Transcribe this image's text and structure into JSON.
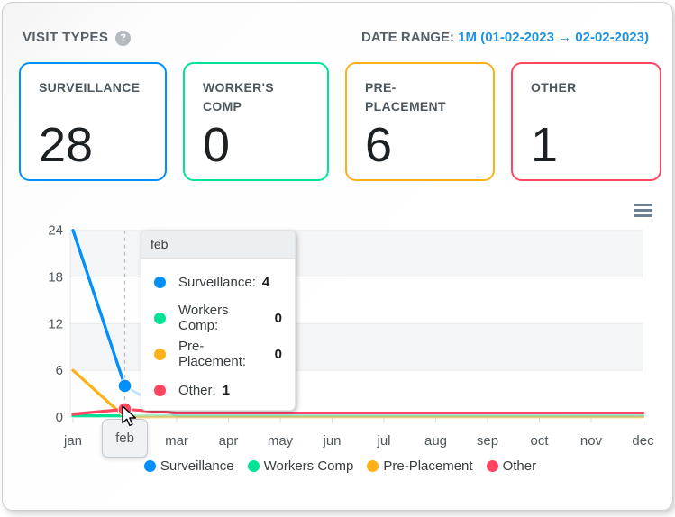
{
  "header": {
    "title": "VISIT TYPES",
    "help_icon": "?",
    "date_range_label": "DATE RANGE:",
    "date_range_value": "1M (01-02-2023 → 02-02-2023)",
    "date_range_color": "#1d93e6"
  },
  "cards": [
    {
      "title": "SURVEILLANCE",
      "value": "28",
      "color": "#008FFB"
    },
    {
      "title": "WORKER'S COMP",
      "value": "0",
      "color": "#00E396"
    },
    {
      "title": "PRE-PLACEMENT",
      "value": "6",
      "color": "#FEB019"
    },
    {
      "title": "OTHER",
      "value": "1",
      "color": "#FF4560"
    }
  ],
  "chart_data": {
    "type": "line",
    "categories": [
      "jan",
      "feb",
      "mar",
      "apr",
      "may",
      "jun",
      "jul",
      "aug",
      "sep",
      "oct",
      "nov",
      "dec"
    ],
    "yticks": [
      0,
      6,
      12,
      18,
      24
    ],
    "ylim": [
      0,
      24
    ],
    "grid": "horizontal-bands",
    "legend_position": "bottom",
    "highlighted_month": "feb",
    "series": [
      {
        "name": "Surveillance",
        "color": "#008FFB",
        "values": [
          24,
          4,
          0,
          0,
          0,
          0,
          0,
          0,
          0,
          0,
          0,
          0
        ]
      },
      {
        "name": "Workers Comp",
        "color": "#00E396",
        "values": [
          0,
          0,
          0,
          0,
          0,
          0,
          0,
          0,
          0,
          0,
          0,
          0
        ]
      },
      {
        "name": "Pre-Placement",
        "color": "#FEB019",
        "values": [
          6,
          0,
          0,
          0,
          0,
          0,
          0,
          0,
          0,
          0,
          0,
          0
        ]
      },
      {
        "name": "Other",
        "color": "#FF4560",
        "values": [
          0,
          1,
          0,
          0,
          0,
          0,
          0,
          0,
          0,
          0,
          0,
          0
        ]
      }
    ]
  },
  "tooltip": {
    "title": "feb",
    "rows": [
      {
        "label": "Surveillance:",
        "value": "4",
        "color": "#008FFB"
      },
      {
        "label": "Workers Comp:",
        "value": "0",
        "color": "#00E396"
      },
      {
        "label": "Pre-Placement:",
        "value": "0",
        "color": "#FEB019"
      },
      {
        "label": "Other:",
        "value": "1",
        "color": "#FF4560"
      }
    ]
  },
  "xaxis_highlight_label": "feb",
  "legend": {
    "items": [
      {
        "label": "Surveillance",
        "color": "#008FFB"
      },
      {
        "label": "Workers Comp",
        "color": "#00E396"
      },
      {
        "label": "Pre-Placement",
        "color": "#FEB019"
      },
      {
        "label": "Other",
        "color": "#FF4560"
      }
    ]
  }
}
